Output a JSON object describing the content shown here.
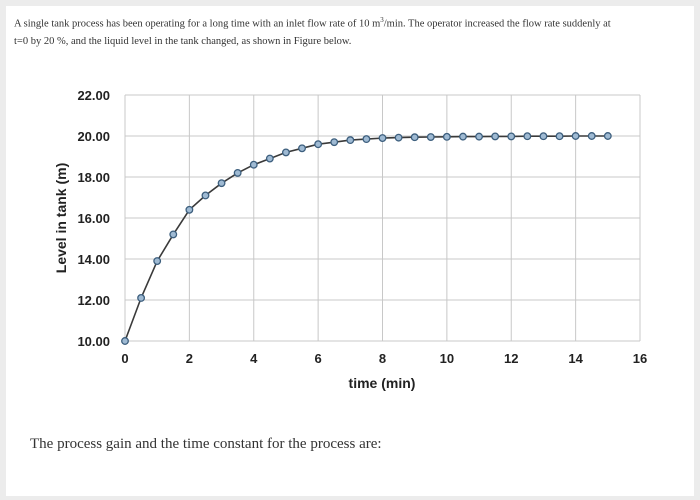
{
  "problem": {
    "line1_pre": "A single tank process has been operating for a long time with an inlet flow rate of 10 m",
    "superscript": "3",
    "line1_post": "/min. The operator increased the flow rate suddenly at",
    "line2": "t=0 by 20 %, and the liquid level in the tank changed, as shown in Figure below."
  },
  "question": "The process gain and the time constant for the process are:",
  "colors": {
    "line": "#3a3a3a",
    "marker_fill": "#9fbad3",
    "marker_stroke": "#3d5f7e",
    "grid": "#c8c8c8"
  },
  "chart_data": {
    "type": "line",
    "xlabel": "time (min)",
    "ylabel": "Level in tank (m)",
    "xlim": [
      0,
      16
    ],
    "ylim": [
      10,
      22
    ],
    "x_ticks": [
      "0",
      "2",
      "4",
      "6",
      "8",
      "10",
      "12",
      "14",
      "16"
    ],
    "y_ticks": [
      "10.00",
      "12.00",
      "14.00",
      "16.00",
      "18.00",
      "20.00",
      "22.00"
    ],
    "grid": true,
    "series": [
      {
        "marker": "circle",
        "x": [
          0,
          0.5,
          1,
          1.5,
          2,
          2.5,
          3,
          3.5,
          4,
          4.5,
          5,
          5.5,
          6,
          6.5,
          7,
          7.5,
          8,
          8.5,
          9,
          9.5,
          10,
          10.5,
          11,
          11.5,
          12,
          12.5,
          13,
          13.5,
          14,
          14.5,
          15
        ],
        "y": [
          10.0,
          12.1,
          13.9,
          15.2,
          16.4,
          17.1,
          17.7,
          18.2,
          18.6,
          18.9,
          19.2,
          19.4,
          19.6,
          19.7,
          19.8,
          19.85,
          19.9,
          19.92,
          19.94,
          19.95,
          19.96,
          19.97,
          19.97,
          19.98,
          19.98,
          19.99,
          19.99,
          19.99,
          20.0,
          20.0,
          20.0
        ]
      }
    ]
  }
}
